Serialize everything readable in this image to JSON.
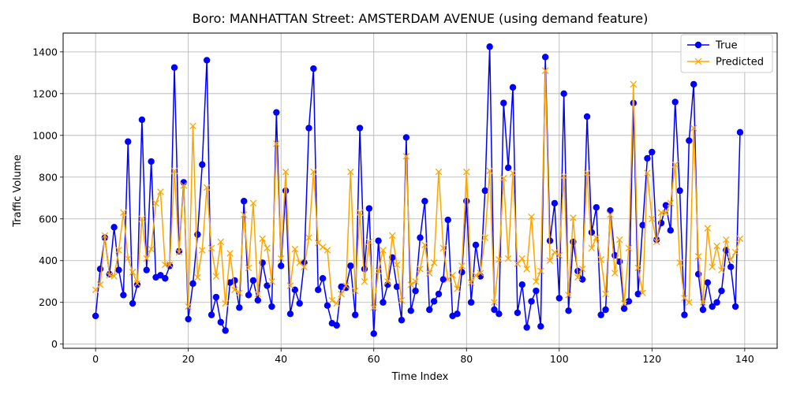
{
  "chart_data": {
    "type": "line",
    "title": "Boro: MANHATTAN Street: AMSTERDAM AVENUE (using demand feature)",
    "xlabel": "Time Index",
    "ylabel": "Traffic Volume",
    "xlim": [
      -7,
      147
    ],
    "ylim": [
      -20,
      1490
    ],
    "xticks": [
      0,
      20,
      40,
      60,
      80,
      100,
      120,
      140
    ],
    "yticks": [
      0,
      200,
      400,
      600,
      800,
      1000,
      1200,
      1400
    ],
    "grid": true,
    "legend_position": "upper-right",
    "series": [
      {
        "name": "True",
        "color": "#0000ff",
        "marker": "circle",
        "values": [
          135,
          360,
          510,
          335,
          560,
          355,
          235,
          970,
          195,
          285,
          1075,
          355,
          875,
          320,
          330,
          315,
          375,
          1325,
          445,
          775,
          120,
          290,
          525,
          860,
          1360,
          140,
          225,
          105,
          65,
          295,
          305,
          175,
          685,
          235,
          305,
          210,
          390,
          280,
          180,
          1110,
          375,
          735,
          145,
          260,
          195,
          390,
          1035,
          1320,
          260,
          315,
          185,
          100,
          90,
          275,
          270,
          375,
          140,
          1035,
          360,
          650,
          50,
          495,
          200,
          285,
          415,
          275,
          115,
          990,
          160,
          255,
          510,
          685,
          165,
          205,
          240,
          310,
          595,
          135,
          145,
          345,
          685,
          200,
          475,
          325,
          735,
          1425,
          165,
          145,
          1155,
          845,
          1230,
          150,
          285,
          80,
          205,
          255,
          85,
          1375,
          495,
          675,
          220,
          1200,
          160,
          490,
          350,
          310,
          1090,
          535,
          655,
          140,
          165,
          640,
          425,
          395,
          170,
          205,
          1155,
          240,
          570,
          890,
          920,
          500,
          580,
          665,
          545,
          1160,
          735,
          140,
          975,
          1245,
          335,
          165,
          295,
          180,
          200,
          255,
          450,
          370,
          180,
          1015
        ]
      },
      {
        "name": "Predicted",
        "color": "#ffa500",
        "marker": "x",
        "values": [
          260,
          285,
          520,
          330,
          325,
          450,
          630,
          410,
          345,
          290,
          600,
          410,
          455,
          675,
          730,
          380,
          380,
          830,
          440,
          760,
          180,
          1045,
          320,
          450,
          750,
          460,
          325,
          490,
          195,
          435,
          260,
          245,
          620,
          365,
          675,
          240,
          505,
          460,
          300,
          960,
          410,
          825,
          280,
          455,
          390,
          370,
          510,
          825,
          485,
          465,
          450,
          210,
          195,
          240,
          280,
          825,
          255,
          630,
          300,
          490,
          175,
          350,
          450,
          300,
          520,
          380,
          210,
          900,
          285,
          300,
          360,
          475,
          340,
          390,
          825,
          460,
          310,
          330,
          265,
          375,
          825,
          295,
          330,
          340,
          510,
          830,
          200,
          405,
          795,
          410,
          820,
          385,
          410,
          360,
          610,
          300,
          350,
          1310,
          400,
          440,
          425,
          805,
          235,
          605,
          320,
          360,
          820,
          460,
          510,
          405,
          240,
          620,
          340,
          500,
          195,
          460,
          1245,
          365,
          245,
          820,
          600,
          490,
          630,
          630,
          675,
          860,
          390,
          220,
          200,
          1035,
          420,
          200,
          555,
          370,
          470,
          355,
          500,
          405,
          440,
          505
        ]
      }
    ]
  }
}
